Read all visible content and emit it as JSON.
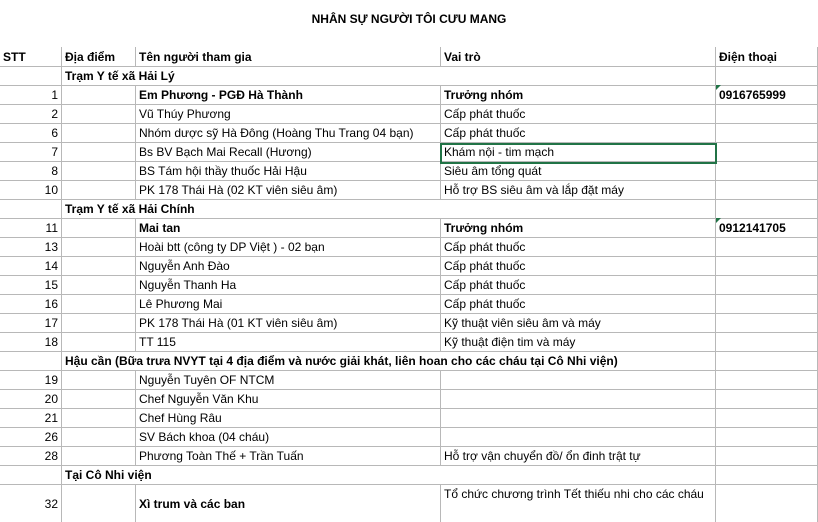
{
  "title": "NHÂN SỰ NGƯỜI TÔI CƯU MANG",
  "columns": [
    "STT",
    "Địa điểm",
    "Tên người tham gia",
    "Vai trò",
    "Điện thoại"
  ],
  "rows": [
    {
      "group": "Trạm Y tế xã Hải Lý"
    },
    {
      "stt": 1,
      "name": "Em Phương - PGĐ Hà Thành",
      "role": "Trưởng nhóm",
      "phone": "0916765999",
      "bold": [
        "name",
        "role",
        "phone"
      ]
    },
    {
      "stt": 2,
      "name": "Vũ Thúy Phương",
      "role": "Cấp phát thuốc"
    },
    {
      "stt": 6,
      "name": "Nhóm dược sỹ Hà Đông (Hoàng Thu Trang  04 bạn)",
      "role": "Cấp phát thuốc"
    },
    {
      "stt": 7,
      "name": "Bs BV Bạch Mai Recall (Hương)",
      "role": "Khám nội - tim mạch"
    },
    {
      "stt": 8,
      "name": "BS Tám  hội thầy thuốc Hải Hậu",
      "role": "Siêu âm tổng quát"
    },
    {
      "stt": 10,
      "name": "PK 178 Thái Hà (02 KT viên siêu âm)",
      "role": "Hỗ trợ BS siêu âm và lắp đặt máy"
    },
    {
      "group": "Trạm Y tế xã Hải Chính"
    },
    {
      "stt": 11,
      "name": "Mai tan",
      "role": "Trưởng nhóm",
      "phone": "0912141705",
      "bold": [
        "name",
        "role",
        "phone"
      ]
    },
    {
      "stt": 13,
      "name": "Hoài btt (công ty DP Việt ) - 02 bạn",
      "role": "Cấp phát thuốc"
    },
    {
      "stt": 14,
      "name": "Nguyễn Anh Đào",
      "role": "Cấp phát thuốc"
    },
    {
      "stt": 15,
      "name": "Nguyễn Thanh Ha",
      "role": "Cấp phát thuốc"
    },
    {
      "stt": 16,
      "name": "Lê Phương Mai",
      "role": "Cấp phát thuốc"
    },
    {
      "stt": 17,
      "name": "PK 178 Thái Hà (01 KT viên siêu âm)",
      "role": "Kỹ thuật viên siêu âm và máy"
    },
    {
      "stt": 18,
      "name": "TT 115",
      "role": "Kỹ thuật điện tim và máy"
    },
    {
      "group": "Hậu cần (Bữa trưa NVYT tại 4 địa điểm và nước giải khát, liên hoan cho các cháu tại Cô Nhi viện)"
    },
    {
      "stt": 19,
      "name": "Nguyễn Tuyên OF NTCM"
    },
    {
      "stt": 20,
      "name": "Chef Nguyễn Văn Khu"
    },
    {
      "stt": 21,
      "name": "Chef Hùng Râu"
    },
    {
      "stt": 26,
      "name": "SV Bách khoa (04 cháu)"
    },
    {
      "stt": 28,
      "name": "Phương Toàn Thế + Trần Tuấn",
      "role": "Hỗ trợ vận chuyển đồ/ ổn đinh trật tự"
    },
    {
      "group": "Tại Cô Nhi viện"
    },
    {
      "stt": 32,
      "name": "Xì trum và các ban",
      "role": "Tổ chức  chương trình Tết thiếu nhi cho các cháu",
      "bold": [
        "name"
      ]
    }
  ]
}
